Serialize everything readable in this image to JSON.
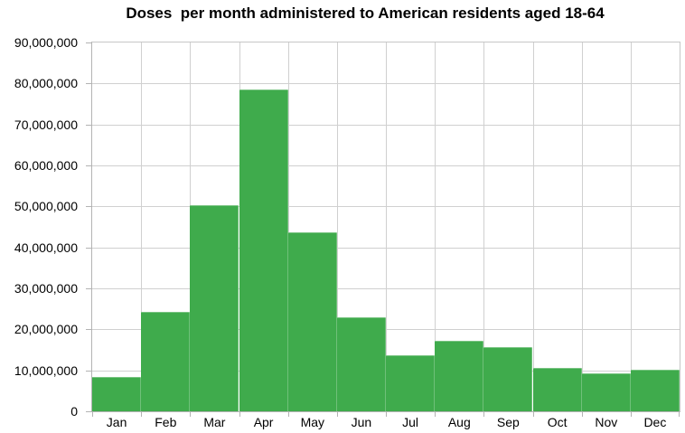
{
  "chart_data": {
    "type": "bar",
    "title": "Doses  per month administered to American residents aged 18-64",
    "categories": [
      "Jan",
      "Feb",
      "Mar",
      "Apr",
      "May",
      "Jun",
      "Jul",
      "Aug",
      "Sep",
      "Oct",
      "Nov",
      "Dec"
    ],
    "values": [
      8400000,
      24300000,
      50400000,
      78500000,
      43600000,
      23000000,
      13700000,
      17200000,
      15600000,
      10700000,
      9200000,
      10100000
    ],
    "xlabel": "",
    "ylabel": "",
    "ylim": [
      0,
      90000000
    ],
    "y_tick_step": 10000000,
    "y_tick_labels": [
      "0",
      "10,000,000",
      "20,000,000",
      "30,000,000",
      "40,000,000",
      "50,000,000",
      "60,000,000",
      "70,000,000",
      "80,000,000",
      "90,000,000"
    ],
    "grid": true,
    "legend": "none",
    "bar_gap": 0,
    "colors": {
      "bar_fill": "#3fab4c",
      "axis_line": "#b3b3b3",
      "gridline": "#d0d0d0",
      "outer_border": "#c6c6c6",
      "background": "#ffffff",
      "text": "#000000"
    }
  }
}
